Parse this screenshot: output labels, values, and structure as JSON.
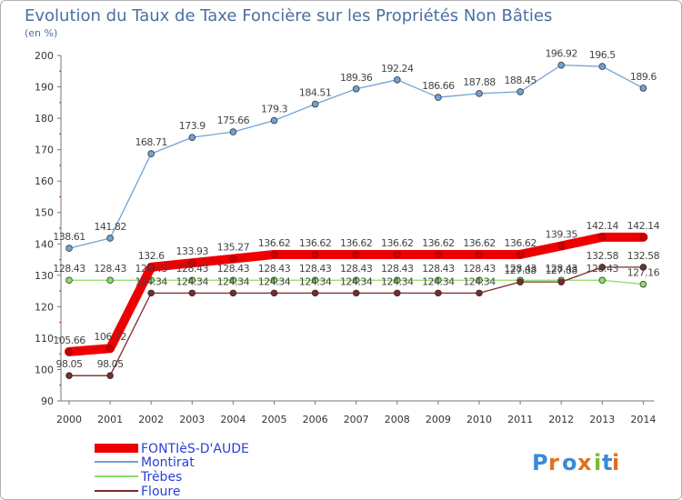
{
  "chart_data": {
    "type": "line",
    "title": "Evolution du Taux de Taxe Foncière sur les Propriétés Non Bâties",
    "ylabel": "(en %)",
    "xlabel": "",
    "ylim": [
      90,
      200
    ],
    "yticks": [
      "90",
      "100",
      "110",
      "120",
      "130",
      "140",
      "150",
      "160",
      "170",
      "180",
      "190",
      "200"
    ],
    "categories": [
      "2000",
      "2001",
      "2002",
      "2003",
      "2004",
      "2005",
      "2006",
      "2007",
      "2008",
      "2009",
      "2010",
      "2011",
      "2012",
      "2013",
      "2014"
    ],
    "series": [
      {
        "name": "FONTIèS-D'AUDE",
        "color": "#ee0000",
        "values": [
          105.66,
          106.72,
          132.6,
          133.93,
          135.27,
          136.62,
          136.62,
          136.62,
          136.62,
          136.62,
          136.62,
          136.62,
          139.35,
          142.14,
          142.14
        ],
        "labels": [
          "105.66",
          "106.72",
          "132.6",
          "133.93",
          "135.27",
          "136.62",
          "136.62",
          "136.62",
          "136.62",
          "136.62",
          "136.62",
          "136.62",
          "139.35",
          "142.14",
          "142.14"
        ]
      },
      {
        "name": "Montirat",
        "color": "#6fa3d6",
        "values": [
          138.61,
          141.82,
          168.71,
          173.9,
          175.66,
          179.3,
          184.51,
          189.36,
          192.24,
          186.66,
          187.88,
          188.45,
          196.92,
          196.5,
          189.6
        ],
        "labels": [
          "138.61",
          "141.82",
          "168.71",
          "173.9",
          "175.66",
          "179.3",
          "184.51",
          "189.36",
          "192.24",
          "186.66",
          "187.88",
          "188.45",
          "196.92",
          "196.5",
          "189.6"
        ]
      },
      {
        "name": "Trèbes",
        "color": "#88dd66",
        "values": [
          128.43,
          128.43,
          128.43,
          128.43,
          128.43,
          128.43,
          128.43,
          128.43,
          128.43,
          128.43,
          128.43,
          128.43,
          128.43,
          128.43,
          127.16
        ],
        "labels": [
          "128.43",
          "128.43",
          "128.43",
          "128.43",
          "128.43",
          "128.43",
          "128.43",
          "128.43",
          "128.43",
          "128.43",
          "128.43",
          "128.43",
          "128.43",
          "128.43",
          "127.16"
        ]
      },
      {
        "name": "Floure",
        "color": "#7a2a2a",
        "values": [
          98.05,
          98.05,
          124.34,
          124.34,
          124.34,
          124.34,
          124.34,
          124.34,
          124.34,
          124.34,
          124.34,
          127.88,
          127.88,
          132.58,
          132.58
        ],
        "labels": [
          "98.05",
          "98.05",
          "124.34",
          "124.34",
          "124.34",
          "124.34",
          "124.34",
          "124.34",
          "124.34",
          "124.34",
          "124.34",
          "127.88",
          "127.88",
          "132.58",
          "132.58"
        ]
      }
    ],
    "legend_position": "bottom-left",
    "grid": false
  },
  "logo": {
    "text": "Proxiti",
    "letters": [
      "P",
      "r",
      "o",
      "x",
      "i",
      "t",
      "i"
    ],
    "colors": [
      "#3a8ad8",
      "#e07020",
      "#3a8ad8",
      "#e07020",
      "#77bb33",
      "#3a8ad8",
      "#e07020"
    ]
  }
}
